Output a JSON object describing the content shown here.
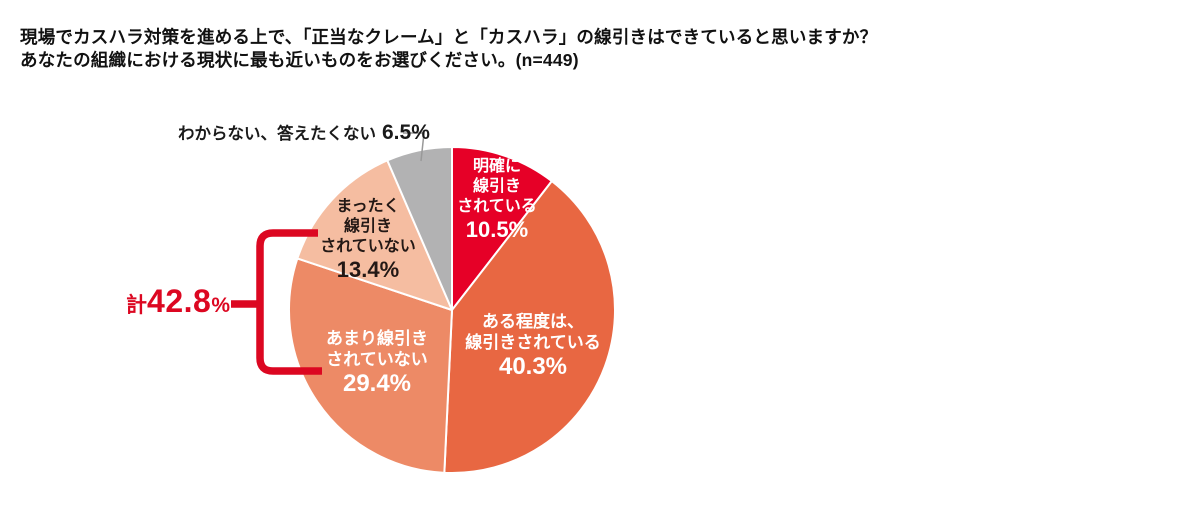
{
  "title": {
    "line1": "現場でカスハラ対策を進める上で、「正当なクレーム」と「カスハラ」の線引きはできていると思いますか？",
    "line2": "あなたの組織における現状に最も近いものをお選びください。(n=449)"
  },
  "colors": {
    "accent_red": "#DC0721",
    "leader_line_gray": "#999999",
    "slice_stroke": "#FFFFFF"
  },
  "annotation": {
    "prefix": "計",
    "value": "42.8",
    "suffix": "%"
  },
  "chart_data": {
    "type": "pie",
    "title": "現場でカスハラ対策を進める上で、「正当なクレーム」と「カスハラ」の線引きはできていると思いますか？ あなたの組織における現状に最も近いものをお選びください。(n=449)",
    "n": 449,
    "start_angle": "12-oclock",
    "direction": "clockwise",
    "segments": [
      {
        "label": "明確に線引きされている",
        "value": 10.5,
        "pct_label": "10.5%",
        "color": "#E60027",
        "text_color": "#FFFFFF",
        "label_lines": [
          "明確に",
          "線引き",
          "されている"
        ]
      },
      {
        "label": "ある程度は、線引きされている",
        "value": 40.3,
        "pct_label": "40.3%",
        "color": "#E86742",
        "text_color": "#FFFFFF",
        "label_lines": [
          "ある程度は、",
          "線引きされている"
        ]
      },
      {
        "label": "あまり線引きされていない",
        "value": 29.4,
        "pct_label": "29.4%",
        "color": "#ED8A66",
        "text_color": "#FFFFFF",
        "label_lines": [
          "あまり線引き",
          "されていない"
        ]
      },
      {
        "label": "まったく線引きされていない",
        "value": 13.4,
        "pct_label": "13.4%",
        "color": "#F5BDA1",
        "text_color": "#231815",
        "label_lines": [
          "まったく",
          "線引き",
          "されていない"
        ]
      },
      {
        "label": "わからない、答えたくない",
        "value": 6.5,
        "pct_label": "6.5%",
        "color": "#B2B2B3",
        "text_color": "#1A1A1A",
        "label_lines": [
          "わからない、答えたくない"
        ]
      }
    ],
    "total_annotation": {
      "text": "計42.8%",
      "value": 42.8,
      "covers": [
        "あまり線引きされていない",
        "まったく線引きされていない"
      ]
    }
  }
}
